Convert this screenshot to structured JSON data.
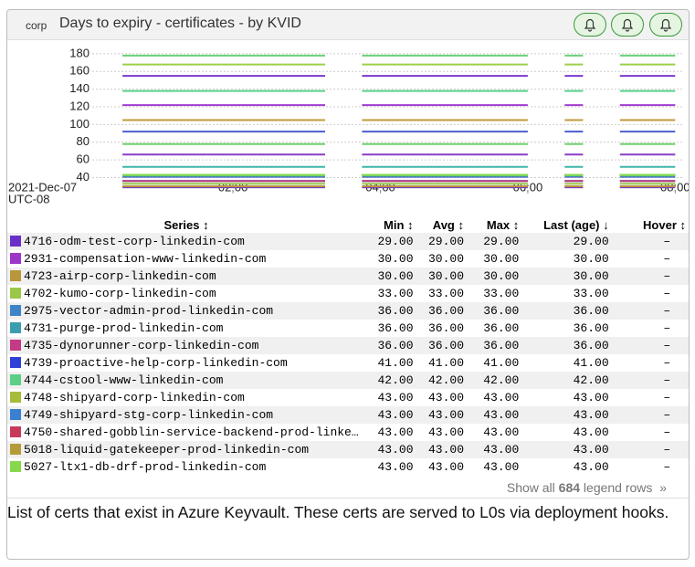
{
  "panel": {
    "tag": "corp",
    "title": "Days to expiry - certificates - by KVID"
  },
  "chart_data": {
    "type": "line",
    "start_label": "2021-Dec-07",
    "timezone": "UTC-08",
    "x": [
      0.25,
      0.5,
      0.75,
      1,
      1.25,
      1.5,
      1.75,
      2,
      2.25,
      2.5,
      2.75,
      3,
      3.25,
      3.5,
      3.75,
      4,
      4.25,
      4.5,
      4.75,
      5,
      5.25,
      5.5,
      5.75,
      6,
      6.25,
      6.5,
      6.75,
      7,
      7.25,
      7.5,
      7.75,
      8
    ],
    "xlim": [
      0.09,
      8.12
    ],
    "xticks": [
      {
        "value": 2,
        "label": "02:00"
      },
      {
        "value": 4,
        "label": "04:00"
      },
      {
        "value": 6,
        "label": "06:00"
      },
      {
        "value": 8,
        "label": "08:00"
      }
    ],
    "ylim": [
      26,
      182
    ],
    "yticks": [
      40,
      60,
      80,
      100,
      120,
      140,
      160,
      180
    ],
    "grid": true,
    "series": [
      {
        "name": "4716-odm-test-corp-linkedin-com",
        "color": "#6a2fc8",
        "values": [
          null,
          29,
          29,
          29,
          29,
          29,
          29,
          29,
          29,
          29,
          29,
          29,
          29,
          null,
          29,
          29,
          29,
          29,
          29,
          29,
          29,
          29,
          29,
          29,
          null,
          29,
          29,
          null,
          29,
          29,
          29,
          29
        ]
      },
      {
        "name": "2931-compensation-www-linkedin-com",
        "color": "#9b36c9",
        "values": [
          null,
          30,
          30,
          30,
          30,
          30,
          30,
          30,
          30,
          30,
          30,
          30,
          30,
          null,
          30,
          30,
          30,
          30,
          30,
          30,
          30,
          30,
          30,
          30,
          null,
          30,
          30,
          null,
          30,
          30,
          30,
          30
        ]
      },
      {
        "name": "4723-airp-corp-linkedin-com",
        "color": "#b8963a",
        "values": [
          null,
          30,
          30,
          30,
          30,
          30,
          30,
          30,
          30,
          30,
          30,
          30,
          30,
          null,
          30,
          30,
          30,
          30,
          30,
          30,
          30,
          30,
          30,
          30,
          null,
          30,
          30,
          null,
          30,
          30,
          30,
          30
        ]
      },
      {
        "name": "4702-kumo-corp-linkedin-com",
        "color": "#9bc84a",
        "values": [
          null,
          33,
          33,
          33,
          33,
          33,
          33,
          33,
          33,
          33,
          33,
          33,
          33,
          null,
          33,
          33,
          33,
          33,
          33,
          33,
          33,
          33,
          33,
          33,
          null,
          33,
          33,
          null,
          33,
          33,
          33,
          33
        ]
      },
      {
        "name": "2975-vector-admin-prod-linkedin-com",
        "color": "#3f84c8",
        "values": [
          null,
          36,
          36,
          36,
          36,
          36,
          36,
          36,
          36,
          36,
          36,
          36,
          36,
          null,
          36,
          36,
          36,
          36,
          36,
          36,
          36,
          36,
          36,
          36,
          null,
          36,
          36,
          null,
          36,
          36,
          36,
          36
        ]
      },
      {
        "name": "4731-purge-prod-linkedin-com",
        "color": "#3b9eb0",
        "values": [
          null,
          36,
          36,
          36,
          36,
          36,
          36,
          36,
          36,
          36,
          36,
          36,
          36,
          null,
          36,
          36,
          36,
          36,
          36,
          36,
          36,
          36,
          36,
          36,
          null,
          36,
          36,
          null,
          36,
          36,
          36,
          36
        ]
      },
      {
        "name": "4735-dynorunner-corp-linkedin-com",
        "color": "#c43a84",
        "values": [
          null,
          36,
          36,
          36,
          36,
          36,
          36,
          36,
          36,
          36,
          36,
          36,
          36,
          null,
          36,
          36,
          36,
          36,
          36,
          36,
          36,
          36,
          36,
          36,
          null,
          36,
          36,
          null,
          36,
          36,
          36,
          36
        ]
      },
      {
        "name": "4739-proactive-help-corp-linkedin-com",
        "color": "#2f3fd8",
        "values": [
          null,
          41,
          41,
          41,
          41,
          41,
          41,
          41,
          41,
          41,
          41,
          41,
          41,
          null,
          41,
          41,
          41,
          41,
          41,
          41,
          41,
          41,
          41,
          41,
          null,
          41,
          41,
          null,
          41,
          41,
          41,
          41
        ]
      },
      {
        "name": "4744-cstool-www-linkedin-com",
        "color": "#5ccf86",
        "values": [
          null,
          42,
          42,
          42,
          42,
          42,
          42,
          42,
          42,
          42,
          42,
          42,
          42,
          null,
          42,
          42,
          42,
          42,
          42,
          42,
          42,
          42,
          42,
          42,
          null,
          42,
          42,
          null,
          42,
          42,
          42,
          42
        ]
      },
      {
        "name": "4748-shipyard-corp-linkedin-com",
        "color": "#a6bd3a",
        "values": [
          null,
          43,
          43,
          43,
          43,
          43,
          43,
          43,
          43,
          43,
          43,
          43,
          43,
          null,
          43,
          43,
          43,
          43,
          43,
          43,
          43,
          43,
          43,
          43,
          null,
          43,
          43,
          null,
          43,
          43,
          43,
          43
        ]
      },
      {
        "name": "4749-shipyard-stg-corp-linkedin-com",
        "color": "#3a7fd0",
        "values": [
          null,
          43,
          43,
          43,
          43,
          43,
          43,
          43,
          43,
          43,
          43,
          43,
          43,
          null,
          43,
          43,
          43,
          43,
          43,
          43,
          43,
          43,
          43,
          43,
          null,
          43,
          43,
          null,
          43,
          43,
          43,
          43
        ]
      },
      {
        "name": "4750-shared-gobblin-service-backend-prod-linke…",
        "color": "#c83a5c",
        "values": [
          null,
          43,
          43,
          43,
          43,
          43,
          43,
          43,
          43,
          43,
          43,
          43,
          43,
          null,
          43,
          43,
          43,
          43,
          43,
          43,
          43,
          43,
          43,
          43,
          null,
          43,
          43,
          null,
          43,
          43,
          43,
          43
        ]
      },
      {
        "name": "5018-liquid-gatekeeper-prod-linkedin-com",
        "color": "#b59a3a",
        "values": [
          null,
          43,
          43,
          43,
          43,
          43,
          43,
          43,
          43,
          43,
          43,
          43,
          43,
          null,
          43,
          43,
          43,
          43,
          43,
          43,
          43,
          43,
          43,
          43,
          null,
          43,
          43,
          null,
          43,
          43,
          43,
          43
        ]
      },
      {
        "name": "5027-ltx1-db-drf-prod-linkedin-com",
        "color": "#86d94a",
        "values": [
          null,
          43,
          43,
          43,
          43,
          43,
          43,
          43,
          43,
          43,
          43,
          43,
          43,
          null,
          43,
          43,
          43,
          43,
          43,
          43,
          43,
          43,
          43,
          43,
          null,
          43,
          43,
          null,
          43,
          43,
          43,
          43
        ]
      },
      {
        "color": "#3fb6a8",
        "values": [
          null,
          52,
          52,
          52,
          52,
          52,
          52,
          52,
          52,
          52,
          52,
          52,
          52,
          null,
          52,
          52,
          52,
          52,
          52,
          52,
          52,
          52,
          52,
          52,
          null,
          52,
          52,
          null,
          52,
          52,
          52,
          52
        ]
      },
      {
        "color": "#8a3cc8",
        "values": [
          null,
          66,
          66,
          66,
          66,
          66,
          66,
          66,
          66,
          66,
          66,
          66,
          66,
          null,
          66,
          66,
          66,
          66,
          66,
          66,
          66,
          66,
          66,
          66,
          null,
          66,
          66,
          null,
          66,
          66,
          66,
          66
        ]
      },
      {
        "color": "#6fcf6a",
        "values": [
          null,
          78,
          78,
          78,
          78,
          78,
          78,
          78,
          78,
          78,
          78,
          78,
          78,
          null,
          78,
          78,
          78,
          78,
          78,
          78,
          78,
          78,
          78,
          78,
          null,
          78,
          78,
          null,
          78,
          78,
          78,
          78
        ]
      },
      {
        "color": "#4a5fd0",
        "values": [
          null,
          92,
          92,
          92,
          92,
          92,
          92,
          92,
          92,
          92,
          92,
          92,
          92,
          null,
          92,
          92,
          92,
          92,
          92,
          92,
          92,
          92,
          92,
          92,
          null,
          92,
          92,
          null,
          92,
          92,
          92,
          92
        ]
      },
      {
        "color": "#c09a3a",
        "values": [
          null,
          105,
          105,
          105,
          105,
          105,
          105,
          105,
          105,
          105,
          105,
          105,
          105,
          null,
          105,
          105,
          105,
          105,
          105,
          105,
          105,
          105,
          105,
          105,
          null,
          105,
          105,
          null,
          105,
          105,
          105,
          105
        ]
      },
      {
        "color": "#a03ccf",
        "values": [
          null,
          122,
          122,
          122,
          122,
          122,
          122,
          122,
          122,
          122,
          122,
          122,
          122,
          null,
          122,
          122,
          122,
          122,
          122,
          122,
          122,
          122,
          122,
          122,
          null,
          122,
          122,
          null,
          122,
          122,
          122,
          122
        ]
      },
      {
        "color": "#5bd08a",
        "values": [
          null,
          138,
          138,
          138,
          138,
          138,
          138,
          138,
          138,
          138,
          138,
          138,
          138,
          null,
          138,
          138,
          138,
          138,
          138,
          138,
          138,
          138,
          138,
          138,
          null,
          138,
          138,
          null,
          138,
          138,
          138,
          138
        ]
      },
      {
        "color": "#7b3ad0",
        "values": [
          null,
          155,
          155,
          155,
          155,
          155,
          155,
          155,
          155,
          155,
          155,
          155,
          155,
          null,
          155,
          155,
          155,
          155,
          155,
          155,
          155,
          155,
          155,
          155,
          null,
          155,
          155,
          null,
          155,
          155,
          155,
          155
        ]
      },
      {
        "color": "#9ccf4a",
        "values": [
          null,
          168,
          168,
          168,
          168,
          168,
          168,
          168,
          168,
          168,
          168,
          168,
          168,
          null,
          168,
          168,
          168,
          168,
          168,
          168,
          168,
          168,
          168,
          168,
          null,
          168,
          168,
          null,
          168,
          168,
          168,
          168
        ]
      },
      {
        "color": "#6ad07a",
        "values": [
          null,
          178,
          178,
          178,
          178,
          178,
          178,
          178,
          178,
          178,
          178,
          178,
          178,
          null,
          178,
          178,
          178,
          178,
          178,
          178,
          178,
          178,
          178,
          178,
          null,
          178,
          178,
          null,
          178,
          178,
          178,
          178
        ]
      }
    ]
  },
  "legend": {
    "columns": [
      "Series ↕",
      "Min ↕",
      "Avg ↕",
      "Max ↕",
      "Last (age) ↓",
      "Hover ↕"
    ],
    "rows": [
      [
        "29.00",
        "29.00",
        "29.00",
        "29.00",
        "–"
      ],
      [
        "30.00",
        "30.00",
        "30.00",
        "30.00",
        "–"
      ],
      [
        "30.00",
        "30.00",
        "30.00",
        "30.00",
        "–"
      ],
      [
        "33.00",
        "33.00",
        "33.00",
        "33.00",
        "–"
      ],
      [
        "36.00",
        "36.00",
        "36.00",
        "36.00",
        "–"
      ],
      [
        "36.00",
        "36.00",
        "36.00",
        "36.00",
        "–"
      ],
      [
        "36.00",
        "36.00",
        "36.00",
        "36.00",
        "–"
      ],
      [
        "41.00",
        "41.00",
        "41.00",
        "41.00",
        "–"
      ],
      [
        "42.00",
        "42.00",
        "42.00",
        "42.00",
        "–"
      ],
      [
        "43.00",
        "43.00",
        "43.00",
        "43.00",
        "–"
      ],
      [
        "43.00",
        "43.00",
        "43.00",
        "43.00",
        "–"
      ],
      [
        "43.00",
        "43.00",
        "43.00",
        "43.00",
        "–"
      ],
      [
        "43.00",
        "43.00",
        "43.00",
        "43.00",
        "–"
      ],
      [
        "43.00",
        "43.00",
        "43.00",
        "43.00",
        "–"
      ]
    ],
    "footer": {
      "prefix": "Show all",
      "count": "684",
      "suffix": "legend rows",
      "arrow": "»"
    }
  },
  "description": "List of certs that exist in Azure Keyvault. These certs are served to L0s via deployment hooks."
}
